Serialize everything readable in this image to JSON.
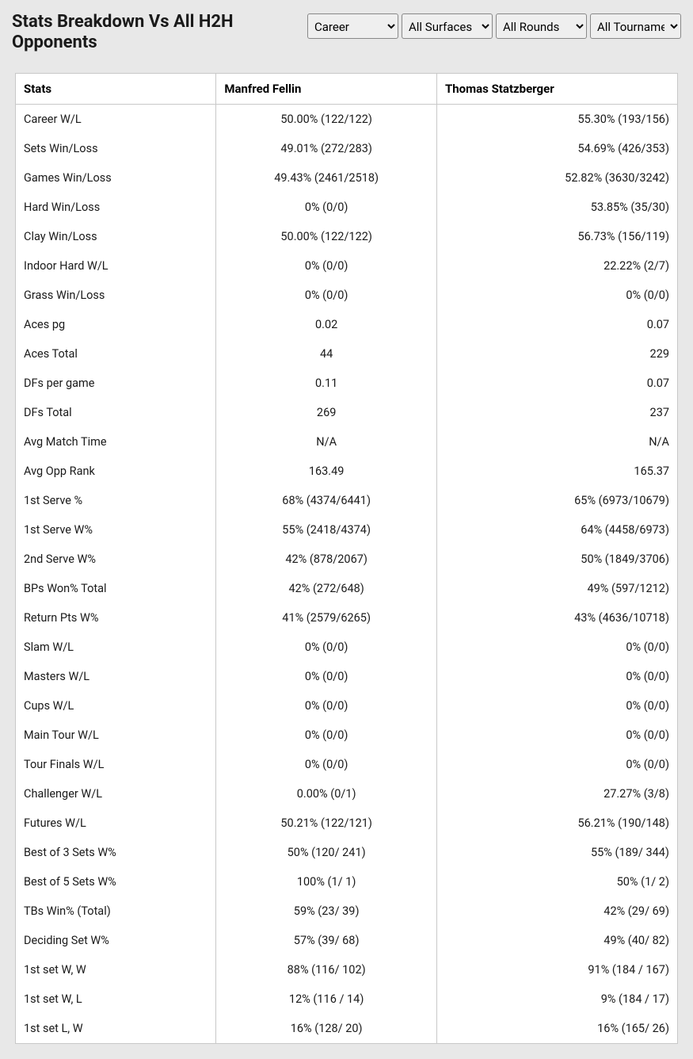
{
  "header": {
    "title": "Stats Breakdown Vs All H2H Opponents"
  },
  "filters": {
    "period": "Career",
    "surface": "All Surfaces",
    "rounds": "All Rounds",
    "tournaments": "All Tournaments"
  },
  "table": {
    "columns": {
      "stats": "Stats",
      "player1": "Manfred Fellin",
      "player2": "Thomas Statzberger"
    },
    "rows": [
      {
        "label": "Career W/L",
        "p1": "50.00% (122/122)",
        "p2": "55.30% (193/156)"
      },
      {
        "label": "Sets Win/Loss",
        "p1": "49.01% (272/283)",
        "p2": "54.69% (426/353)"
      },
      {
        "label": "Games Win/Loss",
        "p1": "49.43% (2461/2518)",
        "p2": "52.82% (3630/3242)"
      },
      {
        "label": "Hard Win/Loss",
        "p1": "0% (0/0)",
        "p2": "53.85% (35/30)"
      },
      {
        "label": "Clay Win/Loss",
        "p1": "50.00% (122/122)",
        "p2": "56.73% (156/119)"
      },
      {
        "label": "Indoor Hard W/L",
        "p1": "0% (0/0)",
        "p2": "22.22% (2/7)"
      },
      {
        "label": "Grass Win/Loss",
        "p1": "0% (0/0)",
        "p2": "0% (0/0)"
      },
      {
        "label": "Aces pg",
        "p1": "0.02",
        "p2": "0.07"
      },
      {
        "label": "Aces Total",
        "p1": "44",
        "p2": "229"
      },
      {
        "label": "DFs per game",
        "p1": "0.11",
        "p2": "0.07"
      },
      {
        "label": "DFs Total",
        "p1": "269",
        "p2": "237"
      },
      {
        "label": "Avg Match Time",
        "p1": "N/A",
        "p2": "N/A"
      },
      {
        "label": "Avg Opp Rank",
        "p1": "163.49",
        "p2": "165.37"
      },
      {
        "label": "1st Serve %",
        "p1": "68% (4374/6441)",
        "p2": "65% (6973/10679)"
      },
      {
        "label": "1st Serve W%",
        "p1": "55% (2418/4374)",
        "p2": "64% (4458/6973)"
      },
      {
        "label": "2nd Serve W%",
        "p1": "42% (878/2067)",
        "p2": "50% (1849/3706)"
      },
      {
        "label": "BPs Won% Total",
        "p1": "42% (272/648)",
        "p2": "49% (597/1212)"
      },
      {
        "label": "Return Pts W%",
        "p1": "41% (2579/6265)",
        "p2": "43% (4636/10718)"
      },
      {
        "label": "Slam W/L",
        "p1": "0% (0/0)",
        "p2": "0% (0/0)"
      },
      {
        "label": "Masters W/L",
        "p1": "0% (0/0)",
        "p2": "0% (0/0)"
      },
      {
        "label": "Cups W/L",
        "p1": "0% (0/0)",
        "p2": "0% (0/0)"
      },
      {
        "label": "Main Tour W/L",
        "p1": "0% (0/0)",
        "p2": "0% (0/0)"
      },
      {
        "label": "Tour Finals W/L",
        "p1": "0% (0/0)",
        "p2": "0% (0/0)"
      },
      {
        "label": "Challenger W/L",
        "p1": "0.00% (0/1)",
        "p2": "27.27% (3/8)"
      },
      {
        "label": "Futures W/L",
        "p1": "50.21% (122/121)",
        "p2": "56.21% (190/148)"
      },
      {
        "label": "Best of 3 Sets W%",
        "p1": "50% (120/ 241)",
        "p2": "55% (189/ 344)"
      },
      {
        "label": "Best of 5 Sets W%",
        "p1": "100% (1/ 1)",
        "p2": "50% (1/ 2)"
      },
      {
        "label": "TBs Win% (Total)",
        "p1": "59% (23/ 39)",
        "p2": "42% (29/ 69)"
      },
      {
        "label": "Deciding Set W%",
        "p1": "57% (39/ 68)",
        "p2": "49% (40/ 82)"
      },
      {
        "label": "1st set W, W",
        "p1": "88% (116/ 102)",
        "p2": "91% (184 / 167)"
      },
      {
        "label": "1st set W, L",
        "p1": "12% (116 / 14)",
        "p2": "9% (184 / 17)"
      },
      {
        "label": "1st set L, W",
        "p1": "16% (128/ 20)",
        "p2": "16% (165/ 26)"
      }
    ]
  }
}
